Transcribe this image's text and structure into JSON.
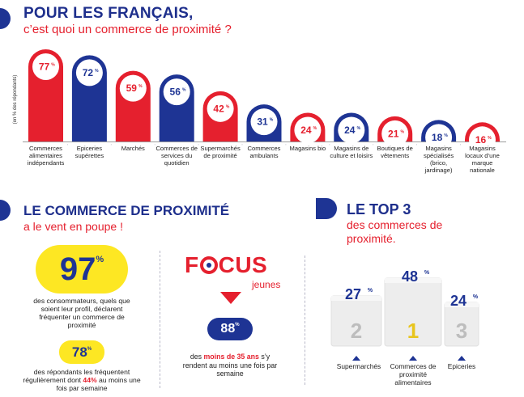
{
  "header": {
    "title": "POUR LES FRANÇAIS,",
    "subtitle": "c’est quoi un commerce de proximité ?",
    "ylabel": "(en % des répondants)"
  },
  "chart_data": [
    {
      "type": "bar",
      "ylabel": "(en % des répondants)",
      "unit": "%",
      "categories": [
        "Commerces alimentaires indépendants",
        "Epiceries supérettes",
        "Marchés",
        "Commerces de services du quotidien",
        "Supermarchés de proximité",
        "Commerces ambulants",
        "Magasins bio",
        "Magasins de culture et loisirs",
        "Boutiques de vêtements",
        "Magasins spécialisés (brico, jardinage)",
        "Magasins locaux d’une marque nationale"
      ],
      "values": [
        77,
        72,
        59,
        56,
        42,
        31,
        24,
        24,
        21,
        18,
        16
      ],
      "bar_colors": [
        "#e5202e",
        "#1e3494",
        "#e5202e",
        "#1e3494",
        "#e5202e",
        "#1e3494",
        "#e5202e",
        "#1e3494",
        "#e5202e",
        "#1e3494",
        "#e5202e"
      ],
      "ylim": [
        0,
        80
      ],
      "grid": false,
      "legend": "none"
    },
    {
      "type": "bar",
      "title": "LE TOP 3",
      "subtitle": "des commerces de proximité.",
      "categories": [
        "Supermarchés",
        "Commerces de proximité alimentaires",
        "Epiceries"
      ],
      "values": [
        27,
        48,
        24
      ],
      "ranks": [
        "2",
        "1",
        "3"
      ],
      "unit": "%"
    }
  ],
  "section2": {
    "title": "LE COMMERCE DE PROXIMITÉ",
    "subtitle": "a le vent en poupe !",
    "stat1": {
      "value": "97",
      "unit": "%",
      "text": "des consommateurs, quels que soient leur profil, déclarent fréquenter un commerce de proximité"
    },
    "stat2": {
      "value": "78",
      "unit": "%",
      "text_before": "des répondants les fréquentent régulièrement dont",
      "highlight": "44%",
      "text_after": "au moins une fois par semaine"
    }
  },
  "focus": {
    "word_start": "F",
    "word_end": "CUS",
    "sub": "jeunes",
    "value": "88",
    "unit": "%",
    "text_before": "des",
    "highlight": "moins de 35 ans",
    "text_after": "s’y rendent au moins une fois par semaine"
  },
  "colors": {
    "red": "#e5202e",
    "blue": "#1e3494",
    "yellow": "#fde723",
    "gold": "#e8c51e"
  }
}
